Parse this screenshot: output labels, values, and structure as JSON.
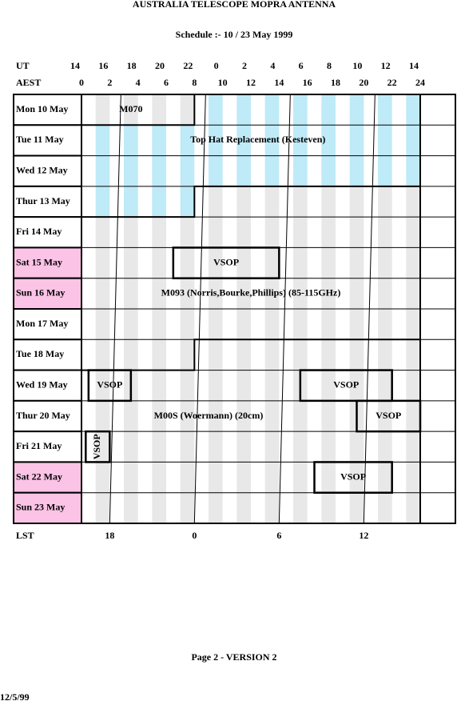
{
  "header": {
    "title": "AUSTRALIA TELESCOPE MOPRA ANTENNA",
    "subtitle": "Schedule :- 10 / 23 May 1999"
  },
  "ut": {
    "label": "UT",
    "values": [
      14,
      16,
      18,
      20,
      22,
      0,
      2,
      4,
      6,
      8,
      10,
      12,
      14
    ]
  },
  "aest": {
    "label": "AEST",
    "values": [
      0,
      2,
      4,
      6,
      8,
      10,
      12,
      14,
      16,
      18,
      20,
      22,
      24
    ]
  },
  "days": [
    "Mon  10  May",
    "Tue   11  May",
    "Wed  12  May",
    "Thur 13  May",
    "Fri   14  May",
    "Sat   15  May",
    "Sun   16  May",
    "Mon  17  May",
    "Tue   18  May",
    "Wed  19  May",
    "Thur 20  May",
    "Fri   21  May",
    "Sat   22  May",
    "Sun   23  May"
  ],
  "blocks": [
    "M070",
    "Top Hat Replacement (Kesteven)",
    "VSOP",
    "M093 (Norris,Bourke,Phillips) (85-115GHz)",
    "VSOP",
    "VSOP",
    "M00S (Woermann) (20cm)",
    "VSOP",
    "VSOP",
    "VSOP"
  ],
  "lst": {
    "label": "LST",
    "values": [
      18,
      0,
      6,
      12
    ]
  },
  "footer": {
    "page": "Page 2 - VERSION 2",
    "date": "12/5/99"
  }
}
